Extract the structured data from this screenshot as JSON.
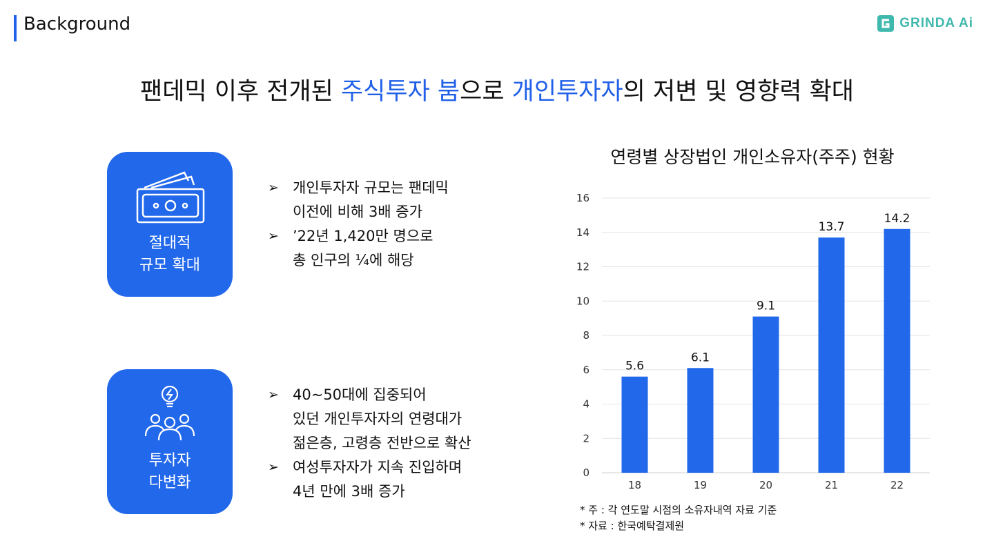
{
  "header": {
    "section_title": "Background",
    "logo_text": "GRINDA Ai"
  },
  "headline": {
    "parts": [
      {
        "text": "팬데믹 이후 전개된 ",
        "accent": false
      },
      {
        "text": "주식투자 붐",
        "accent": true
      },
      {
        "text": "으로 ",
        "accent": false
      },
      {
        "text": "개인투자자",
        "accent": true
      },
      {
        "text": "의 저변 및 영향력 확대",
        "accent": false
      }
    ]
  },
  "cards": [
    {
      "icon": "money-bill-icon",
      "label_lines": [
        "절대적",
        "규모 확대"
      ],
      "bullets": [
        [
          "개인투자자 규모는 팬데믹",
          "이전에 비해 3배 증가"
        ],
        [
          "’22년 1,420만 명으로",
          "총 인구의 ¼에 해당"
        ]
      ]
    },
    {
      "icon": "people-lightbulb-icon",
      "label_lines": [
        "투자자",
        "다변화"
      ],
      "bullets": [
        [
          "40~50대에 집중되어",
          "있던 개인투자자의 연령대가",
          "젊은층, 고령층 전반으로 확산"
        ],
        [
          "여성투자자가 지속 진입하며",
          "4년 만에 3배 증가"
        ]
      ]
    }
  ],
  "bullet_symbol": "➢",
  "chart_data": {
    "type": "bar",
    "title": "연령별 상장법인 개인소유자(주주) 현황",
    "categories": [
      "18",
      "19",
      "20",
      "21",
      "22"
    ],
    "values": [
      5.6,
      6.1,
      9.1,
      13.7,
      14.2
    ],
    "value_labels": [
      "5.6",
      "6.1",
      "9.1",
      "13.7",
      "14.2"
    ],
    "ylim": [
      0,
      16
    ],
    "yticks": [
      0,
      2,
      4,
      6,
      8,
      10,
      12,
      14,
      16
    ],
    "grid": true,
    "bar_color": "#2268ea",
    "xlabel": "",
    "ylabel": ""
  },
  "footnotes": [
    "* 주 : 각 연도말 시점의 소유자내역 자료 기준",
    "* 자료 : 한국예탁결제원"
  ],
  "colors": {
    "accent": "#2060e8",
    "card_bg": "#2268ea",
    "logo": "#3fb8ad"
  }
}
